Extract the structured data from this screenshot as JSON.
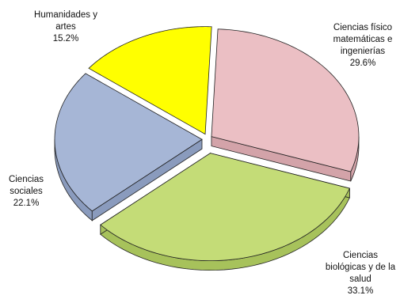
{
  "chart_data": {
    "type": "pie",
    "style": "3d-exploded",
    "title": "",
    "slices": [
      {
        "label_lines": [
          "Ciencias físico",
          "matemáticas e",
          "ingenierías"
        ],
        "percent_text": "29.6%",
        "value": 29.6,
        "color": "#ebbfc4",
        "side_color": "#d3a3a9"
      },
      {
        "label_lines": [
          "Ciencias",
          "biológicas y de la",
          "salud"
        ],
        "percent_text": "33.1%",
        "value": 33.1,
        "color": "#c4dc77",
        "side_color": "#a7c25b"
      },
      {
        "label_lines": [
          "Ciencias",
          "sociales"
        ],
        "percent_text": "22.1%",
        "value": 22.1,
        "color": "#a6b6d6",
        "side_color": "#8a9bbd"
      },
      {
        "label_lines": [
          "Humanidades y",
          "artes"
        ],
        "percent_text": "15.2%",
        "value": 15.2,
        "color": "#ffff00",
        "side_color": "#d4d400"
      }
    ]
  }
}
